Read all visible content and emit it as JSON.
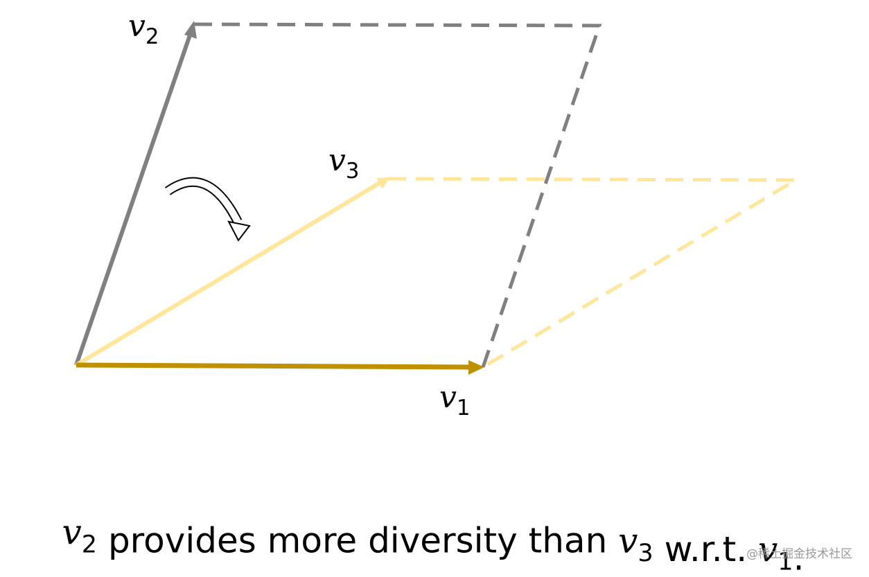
{
  "labels": [
    {
      "symbol": "v",
      "subscript": "2"
    },
    {
      "symbol": "v",
      "subscript": "3"
    },
    {
      "symbol": "v",
      "subscript": "1"
    }
  ],
  "caption": [
    {
      "symbol": "v",
      "subscript": "2"
    },
    {
      "text": " provides more diversity than "
    },
    {
      "symbol": "v",
      "subscript": "3"
    },
    {
      "text": " w.r.t. "
    },
    {
      "symbol": "v",
      "subscript": "1"
    },
    {
      "text": "."
    }
  ],
  "watermark": "@稀土掘金技术社区"
}
